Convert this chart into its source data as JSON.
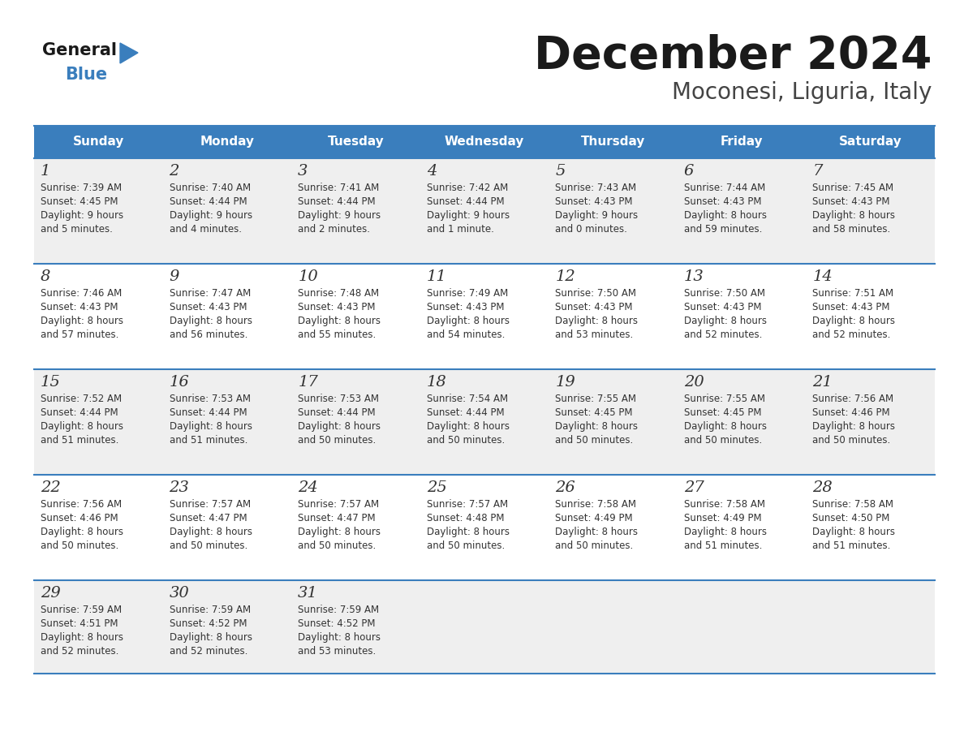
{
  "title": "December 2024",
  "subtitle": "Moconesi, Liguria, Italy",
  "header_bg_color": "#3A7EBD",
  "header_text_color": "#FFFFFF",
  "header_days": [
    "Sunday",
    "Monday",
    "Tuesday",
    "Wednesday",
    "Thursday",
    "Friday",
    "Saturday"
  ],
  "row_bg_even": "#EFEFEF",
  "row_bg_odd": "#FFFFFF",
  "cell_border_color": "#3A7EBD",
  "title_color": "#1A1A1A",
  "subtitle_color": "#444444",
  "day_num_color": "#333333",
  "info_text_color": "#333333",
  "logo_general_color": "#1A1A1A",
  "logo_blue_color": "#3A7EBD",
  "calendar": [
    [
      {
        "day": 1,
        "sunrise": "7:39 AM",
        "sunset": "4:45 PM",
        "daylight": "9 hours\nand 5 minutes."
      },
      {
        "day": 2,
        "sunrise": "7:40 AM",
        "sunset": "4:44 PM",
        "daylight": "9 hours\nand 4 minutes."
      },
      {
        "day": 3,
        "sunrise": "7:41 AM",
        "sunset": "4:44 PM",
        "daylight": "9 hours\nand 2 minutes."
      },
      {
        "day": 4,
        "sunrise": "7:42 AM",
        "sunset": "4:44 PM",
        "daylight": "9 hours\nand 1 minute."
      },
      {
        "day": 5,
        "sunrise": "7:43 AM",
        "sunset": "4:43 PM",
        "daylight": "9 hours\nand 0 minutes."
      },
      {
        "day": 6,
        "sunrise": "7:44 AM",
        "sunset": "4:43 PM",
        "daylight": "8 hours\nand 59 minutes."
      },
      {
        "day": 7,
        "sunrise": "7:45 AM",
        "sunset": "4:43 PM",
        "daylight": "8 hours\nand 58 minutes."
      }
    ],
    [
      {
        "day": 8,
        "sunrise": "7:46 AM",
        "sunset": "4:43 PM",
        "daylight": "8 hours\nand 57 minutes."
      },
      {
        "day": 9,
        "sunrise": "7:47 AM",
        "sunset": "4:43 PM",
        "daylight": "8 hours\nand 56 minutes."
      },
      {
        "day": 10,
        "sunrise": "7:48 AM",
        "sunset": "4:43 PM",
        "daylight": "8 hours\nand 55 minutes."
      },
      {
        "day": 11,
        "sunrise": "7:49 AM",
        "sunset": "4:43 PM",
        "daylight": "8 hours\nand 54 minutes."
      },
      {
        "day": 12,
        "sunrise": "7:50 AM",
        "sunset": "4:43 PM",
        "daylight": "8 hours\nand 53 minutes."
      },
      {
        "day": 13,
        "sunrise": "7:50 AM",
        "sunset": "4:43 PM",
        "daylight": "8 hours\nand 52 minutes."
      },
      {
        "day": 14,
        "sunrise": "7:51 AM",
        "sunset": "4:43 PM",
        "daylight": "8 hours\nand 52 minutes."
      }
    ],
    [
      {
        "day": 15,
        "sunrise": "7:52 AM",
        "sunset": "4:44 PM",
        "daylight": "8 hours\nand 51 minutes."
      },
      {
        "day": 16,
        "sunrise": "7:53 AM",
        "sunset": "4:44 PM",
        "daylight": "8 hours\nand 51 minutes."
      },
      {
        "day": 17,
        "sunrise": "7:53 AM",
        "sunset": "4:44 PM",
        "daylight": "8 hours\nand 50 minutes."
      },
      {
        "day": 18,
        "sunrise": "7:54 AM",
        "sunset": "4:44 PM",
        "daylight": "8 hours\nand 50 minutes."
      },
      {
        "day": 19,
        "sunrise": "7:55 AM",
        "sunset": "4:45 PM",
        "daylight": "8 hours\nand 50 minutes."
      },
      {
        "day": 20,
        "sunrise": "7:55 AM",
        "sunset": "4:45 PM",
        "daylight": "8 hours\nand 50 minutes."
      },
      {
        "day": 21,
        "sunrise": "7:56 AM",
        "sunset": "4:46 PM",
        "daylight": "8 hours\nand 50 minutes."
      }
    ],
    [
      {
        "day": 22,
        "sunrise": "7:56 AM",
        "sunset": "4:46 PM",
        "daylight": "8 hours\nand 50 minutes."
      },
      {
        "day": 23,
        "sunrise": "7:57 AM",
        "sunset": "4:47 PM",
        "daylight": "8 hours\nand 50 minutes."
      },
      {
        "day": 24,
        "sunrise": "7:57 AM",
        "sunset": "4:47 PM",
        "daylight": "8 hours\nand 50 minutes."
      },
      {
        "day": 25,
        "sunrise": "7:57 AM",
        "sunset": "4:48 PM",
        "daylight": "8 hours\nand 50 minutes."
      },
      {
        "day": 26,
        "sunrise": "7:58 AM",
        "sunset": "4:49 PM",
        "daylight": "8 hours\nand 50 minutes."
      },
      {
        "day": 27,
        "sunrise": "7:58 AM",
        "sunset": "4:49 PM",
        "daylight": "8 hours\nand 51 minutes."
      },
      {
        "day": 28,
        "sunrise": "7:58 AM",
        "sunset": "4:50 PM",
        "daylight": "8 hours\nand 51 minutes."
      }
    ],
    [
      {
        "day": 29,
        "sunrise": "7:59 AM",
        "sunset": "4:51 PM",
        "daylight": "8 hours\nand 52 minutes."
      },
      {
        "day": 30,
        "sunrise": "7:59 AM",
        "sunset": "4:52 PM",
        "daylight": "8 hours\nand 52 minutes."
      },
      {
        "day": 31,
        "sunrise": "7:59 AM",
        "sunset": "4:52 PM",
        "daylight": "8 hours\nand 53 minutes."
      },
      null,
      null,
      null,
      null
    ]
  ]
}
